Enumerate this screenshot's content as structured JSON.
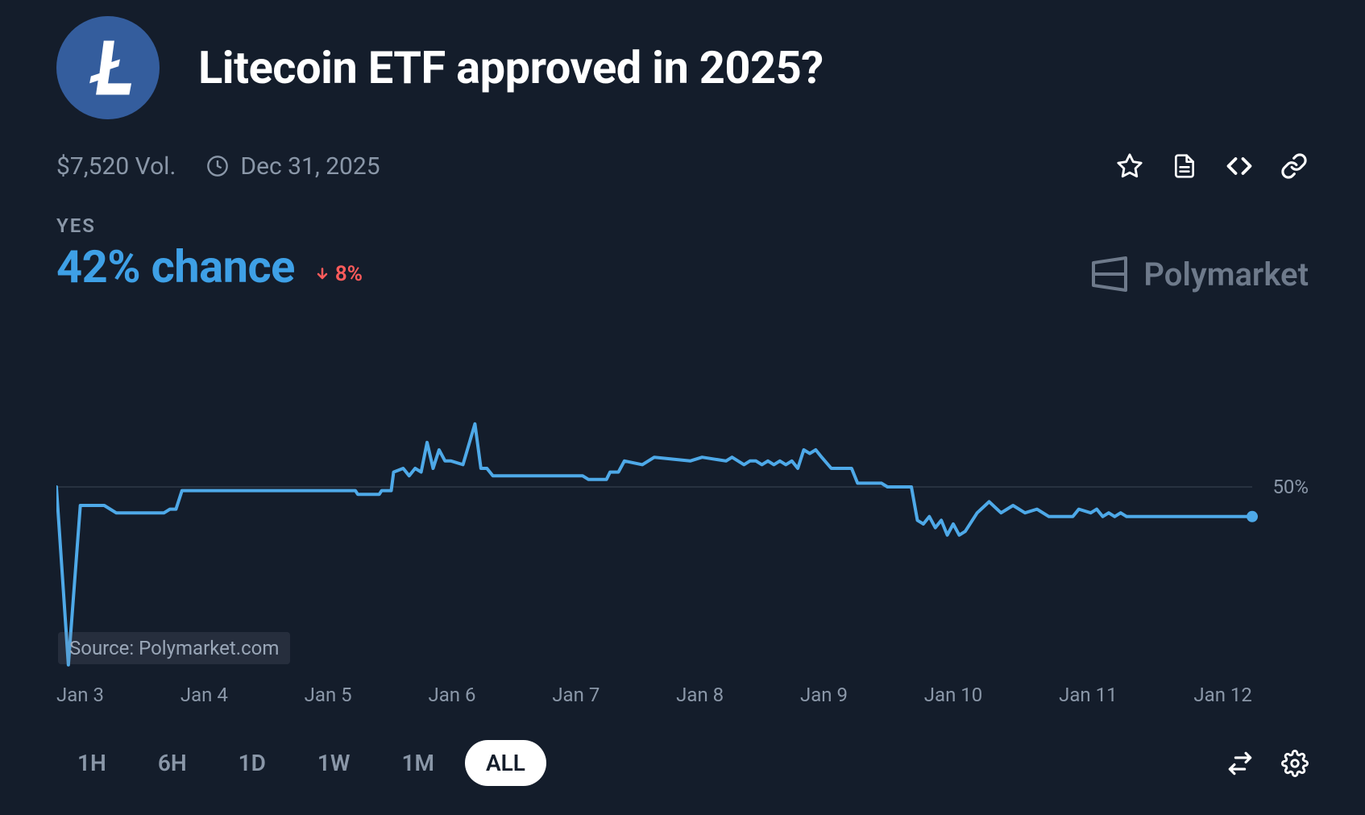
{
  "header": {
    "title": "Litecoin ETF approved in 2025?",
    "coin_icon_bg": "#345d9d",
    "coin_letter": "Ł"
  },
  "meta": {
    "volume": "$7,520 Vol.",
    "expiry_date": "Dec 31, 2025",
    "icons": [
      "star",
      "document",
      "embed",
      "link"
    ],
    "text_color": "#8a97a8"
  },
  "stats": {
    "yes_label": "YES",
    "chance_text": "42% chance",
    "chance_color": "#3ea0e6",
    "delta_direction": "down",
    "delta_text": "8%",
    "delta_color": "#ff5b5b"
  },
  "brand": {
    "name": "Polymarket",
    "color": "#6e7a8b"
  },
  "chart": {
    "type": "line",
    "line_color": "#4ea9e8",
    "line_width": 4,
    "end_marker_radius": 7,
    "background_color": "#141d2b",
    "grid_color": "#4a5565",
    "grid_width": 0.7,
    "label_color": "#8a97a8",
    "label_fontsize": 24,
    "y_gridline_value": 50,
    "y_gridline_label": "50%",
    "ylim": [
      0,
      100
    ],
    "x_labels": [
      "Jan 3",
      "Jan 4",
      "Jan 5",
      "Jan 6",
      "Jan 7",
      "Jan 8",
      "Jan 9",
      "Jan 10",
      "Jan 11",
      "Jan 12"
    ],
    "source_tag": "Source: Polymarket.com",
    "series": [
      {
        "x": 0.0,
        "y": 50
      },
      {
        "x": 0.01,
        "y": 2
      },
      {
        "x": 0.02,
        "y": 45
      },
      {
        "x": 0.04,
        "y": 45
      },
      {
        "x": 0.05,
        "y": 43
      },
      {
        "x": 0.09,
        "y": 43
      },
      {
        "x": 0.095,
        "y": 44
      },
      {
        "x": 0.1,
        "y": 44
      },
      {
        "x": 0.105,
        "y": 49
      },
      {
        "x": 0.25,
        "y": 49
      },
      {
        "x": 0.252,
        "y": 48
      },
      {
        "x": 0.27,
        "y": 48
      },
      {
        "x": 0.272,
        "y": 49
      },
      {
        "x": 0.28,
        "y": 49
      },
      {
        "x": 0.282,
        "y": 54
      },
      {
        "x": 0.29,
        "y": 55
      },
      {
        "x": 0.295,
        "y": 53
      },
      {
        "x": 0.3,
        "y": 55
      },
      {
        "x": 0.305,
        "y": 54
      },
      {
        "x": 0.31,
        "y": 62
      },
      {
        "x": 0.315,
        "y": 55
      },
      {
        "x": 0.32,
        "y": 60
      },
      {
        "x": 0.325,
        "y": 57
      },
      {
        "x": 0.33,
        "y": 57
      },
      {
        "x": 0.34,
        "y": 56
      },
      {
        "x": 0.35,
        "y": 67
      },
      {
        "x": 0.355,
        "y": 55
      },
      {
        "x": 0.36,
        "y": 55
      },
      {
        "x": 0.365,
        "y": 53
      },
      {
        "x": 0.44,
        "y": 53
      },
      {
        "x": 0.445,
        "y": 52
      },
      {
        "x": 0.46,
        "y": 52
      },
      {
        "x": 0.463,
        "y": 54
      },
      {
        "x": 0.47,
        "y": 54
      },
      {
        "x": 0.475,
        "y": 57
      },
      {
        "x": 0.49,
        "y": 56
      },
      {
        "x": 0.5,
        "y": 58
      },
      {
        "x": 0.53,
        "y": 57
      },
      {
        "x": 0.54,
        "y": 58
      },
      {
        "x": 0.56,
        "y": 57
      },
      {
        "x": 0.565,
        "y": 58
      },
      {
        "x": 0.575,
        "y": 56
      },
      {
        "x": 0.58,
        "y": 57
      },
      {
        "x": 0.585,
        "y": 57
      },
      {
        "x": 0.59,
        "y": 56
      },
      {
        "x": 0.595,
        "y": 57
      },
      {
        "x": 0.6,
        "y": 56
      },
      {
        "x": 0.605,
        "y": 57
      },
      {
        "x": 0.61,
        "y": 56
      },
      {
        "x": 0.615,
        "y": 57
      },
      {
        "x": 0.62,
        "y": 55
      },
      {
        "x": 0.625,
        "y": 60
      },
      {
        "x": 0.63,
        "y": 59
      },
      {
        "x": 0.635,
        "y": 60
      },
      {
        "x": 0.64,
        "y": 58
      },
      {
        "x": 0.648,
        "y": 55
      },
      {
        "x": 0.665,
        "y": 55
      },
      {
        "x": 0.67,
        "y": 51
      },
      {
        "x": 0.69,
        "y": 51
      },
      {
        "x": 0.695,
        "y": 50
      },
      {
        "x": 0.715,
        "y": 50
      },
      {
        "x": 0.72,
        "y": 41
      },
      {
        "x": 0.725,
        "y": 40
      },
      {
        "x": 0.73,
        "y": 42
      },
      {
        "x": 0.735,
        "y": 39
      },
      {
        "x": 0.74,
        "y": 41
      },
      {
        "x": 0.745,
        "y": 37
      },
      {
        "x": 0.75,
        "y": 40
      },
      {
        "x": 0.755,
        "y": 37
      },
      {
        "x": 0.76,
        "y": 38
      },
      {
        "x": 0.77,
        "y": 43
      },
      {
        "x": 0.78,
        "y": 46
      },
      {
        "x": 0.79,
        "y": 43
      },
      {
        "x": 0.8,
        "y": 45
      },
      {
        "x": 0.81,
        "y": 43
      },
      {
        "x": 0.82,
        "y": 44
      },
      {
        "x": 0.83,
        "y": 42
      },
      {
        "x": 0.85,
        "y": 42
      },
      {
        "x": 0.855,
        "y": 44
      },
      {
        "x": 0.865,
        "y": 43
      },
      {
        "x": 0.87,
        "y": 44
      },
      {
        "x": 0.875,
        "y": 42
      },
      {
        "x": 0.88,
        "y": 43
      },
      {
        "x": 0.885,
        "y": 42
      },
      {
        "x": 0.89,
        "y": 43
      },
      {
        "x": 0.895,
        "y": 42
      },
      {
        "x": 0.92,
        "y": 42
      },
      {
        "x": 1.0,
        "y": 42
      }
    ]
  },
  "ranges": {
    "options": [
      "1H",
      "6H",
      "1D",
      "1W",
      "1M",
      "ALL"
    ],
    "active": "ALL",
    "inactive_color": "#8a97a8",
    "active_bg": "#ffffff",
    "active_fg": "#141d2b"
  },
  "bottom_icons": [
    "swap",
    "settings"
  ]
}
